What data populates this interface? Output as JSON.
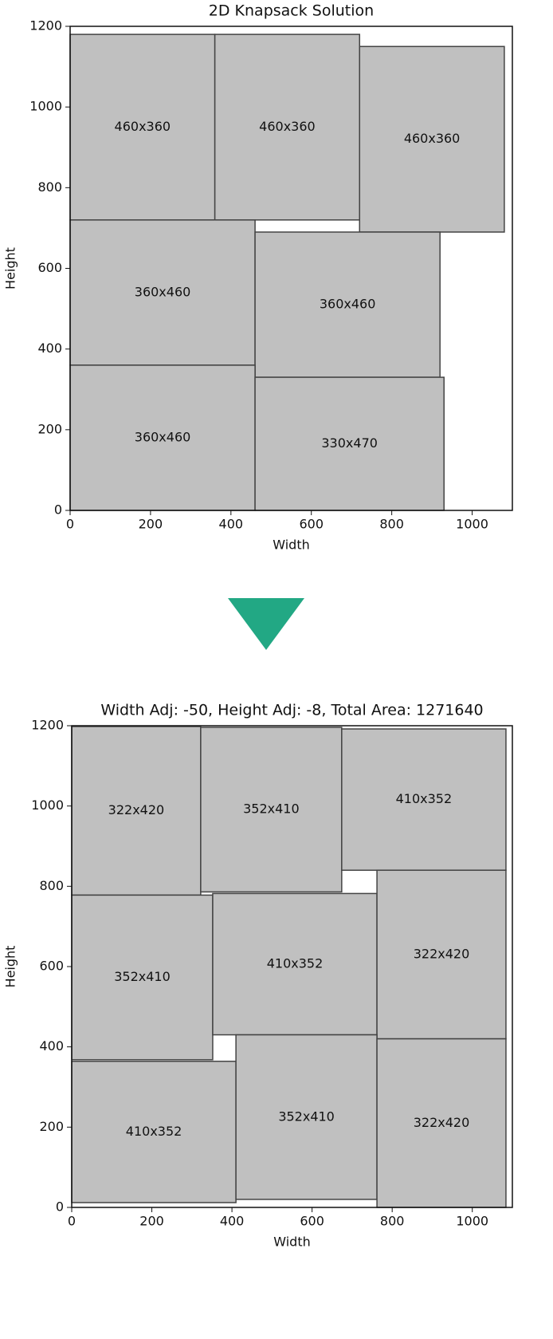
{
  "chart_data": [
    {
      "type": "packing",
      "title": "2D Knapsack Solution",
      "xlabel": "Width",
      "ylabel": "Height",
      "xlim": [
        0,
        1100
      ],
      "ylim": [
        0,
        1200
      ],
      "xticks": [
        0,
        200,
        400,
        600,
        800,
        1000
      ],
      "yticks": [
        0,
        200,
        400,
        600,
        800,
        1000,
        1200
      ],
      "color": "#c0c0c0",
      "rects": [
        {
          "x": 0,
          "y": 720,
          "w": 360,
          "h": 460,
          "label": "460x360"
        },
        {
          "x": 360,
          "y": 720,
          "w": 360,
          "h": 460,
          "label": "460x360"
        },
        {
          "x": 720,
          "y": 690,
          "w": 360,
          "h": 460,
          "label": "460x360"
        },
        {
          "x": 0,
          "y": 360,
          "w": 460,
          "h": 360,
          "label": "360x460"
        },
        {
          "x": 460,
          "y": 330,
          "w": 460,
          "h": 360,
          "label": "360x460"
        },
        {
          "x": 0,
          "y": 0,
          "w": 460,
          "h": 360,
          "label": "360x460"
        },
        {
          "x": 460,
          "y": 0,
          "w": 470,
          "h": 330,
          "label": "330x470"
        }
      ]
    },
    {
      "type": "packing",
      "title": "Width Adj: -50, Height Adj: -8, Total Area: 1271640",
      "xlabel": "Width",
      "ylabel": "Height",
      "xlim": [
        0,
        1100
      ],
      "ylim": [
        0,
        1200
      ],
      "xticks": [
        0,
        200,
        400,
        600,
        800,
        1000
      ],
      "yticks": [
        0,
        200,
        400,
        600,
        800,
        1000,
        1200
      ],
      "color": "#c0c0c0",
      "rects": [
        {
          "x": 0,
          "y": 778,
          "w": 322,
          "h": 420,
          "label": "322x420"
        },
        {
          "x": 322,
          "y": 786,
          "w": 352,
          "h": 410,
          "label": "352x410"
        },
        {
          "x": 674,
          "y": 840,
          "w": 410,
          "h": 352,
          "label": "410x352"
        },
        {
          "x": 0,
          "y": 368,
          "w": 352,
          "h": 410,
          "label": "352x410"
        },
        {
          "x": 352,
          "y": 430,
          "w": 410,
          "h": 352,
          "label": "410x352"
        },
        {
          "x": 762,
          "y": 420,
          "w": 322,
          "h": 420,
          "label": "322x420"
        },
        {
          "x": 0,
          "y": 12,
          "w": 410,
          "h": 352,
          "label": "410x352"
        },
        {
          "x": 410,
          "y": 20,
          "w": 352,
          "h": 410,
          "label": "352x410"
        },
        {
          "x": 762,
          "y": 0,
          "w": 322,
          "h": 420,
          "label": "322x420"
        }
      ]
    }
  ]
}
